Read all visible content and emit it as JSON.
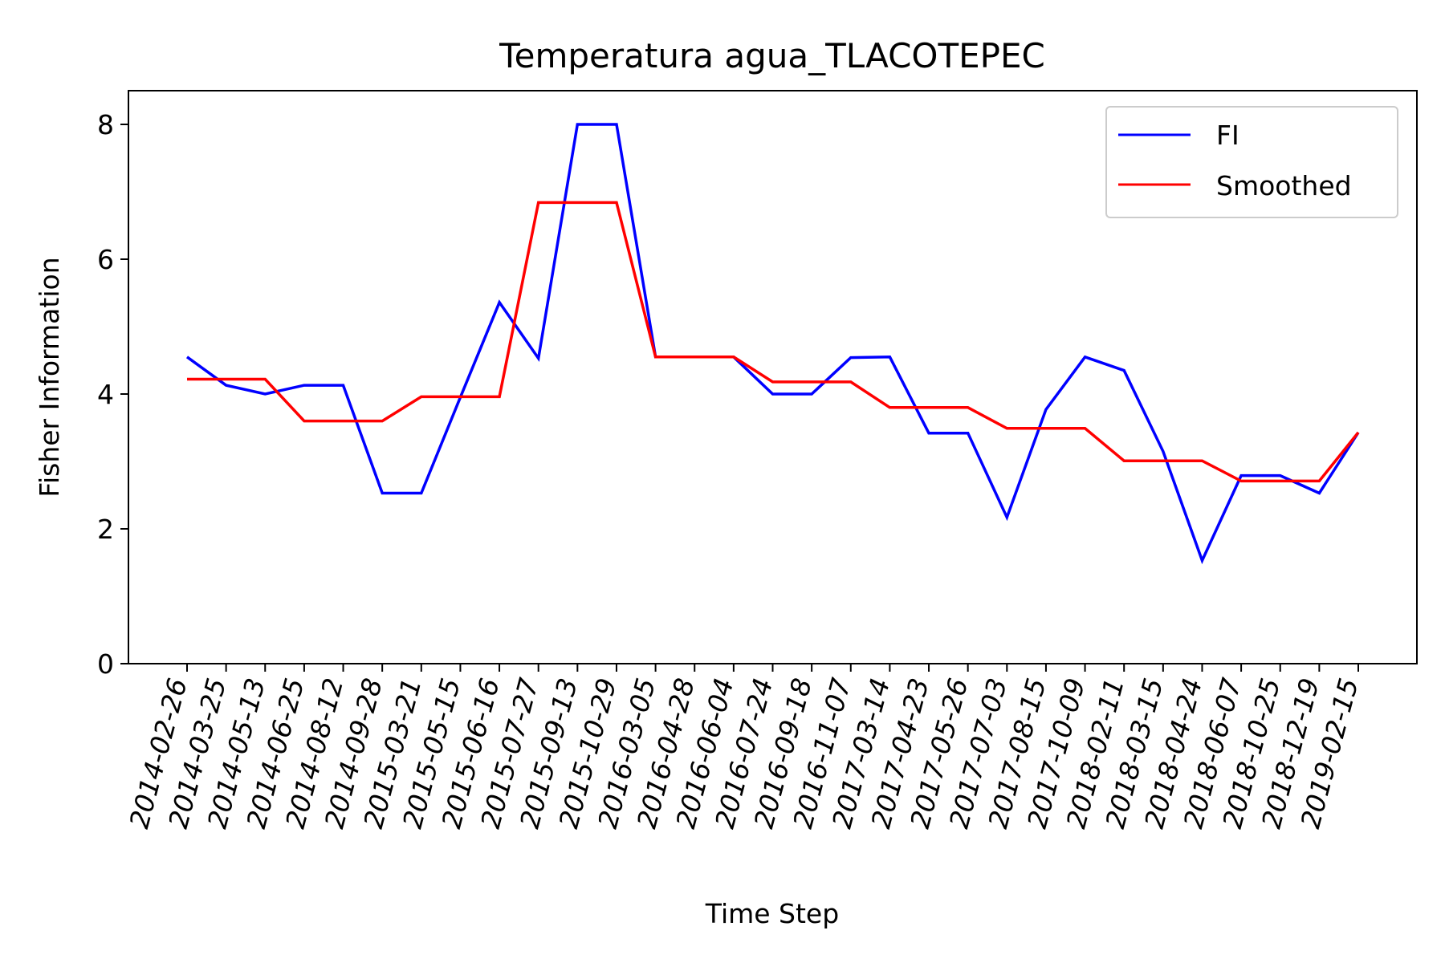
{
  "chart_data": {
    "type": "line",
    "title": "Temperatura agua_TLACOTEPEC",
    "xlabel": "Time Step",
    "ylabel": "Fisher Information",
    "categories": [
      "2014-02-26",
      "2014-03-25",
      "2014-05-13",
      "2014-06-25",
      "2014-08-12",
      "2014-09-28",
      "2015-03-21",
      "2015-05-15",
      "2015-06-16",
      "2015-07-27",
      "2015-09-13",
      "2015-10-29",
      "2016-03-05",
      "2016-04-28",
      "2016-06-04",
      "2016-07-24",
      "2016-09-18",
      "2016-11-07",
      "2017-03-14",
      "2017-04-23",
      "2017-05-26",
      "2017-07-03",
      "2017-08-15",
      "2017-10-09",
      "2018-02-11",
      "2018-03-15",
      "2018-04-24",
      "2018-06-07",
      "2018-10-25",
      "2018-12-19",
      "2019-02-15"
    ],
    "ylim": [
      0,
      8.5
    ],
    "yticks": [
      0,
      2,
      4,
      6,
      8
    ],
    "grid": false,
    "legend_position": "top-right",
    "series": [
      {
        "name": "FI",
        "color": "#0000ff",
        "values": [
          4.55,
          4.13,
          4.0,
          4.13,
          4.13,
          2.53,
          2.53,
          3.95,
          5.36,
          4.53,
          8.0,
          8.0,
          4.55,
          4.55,
          4.55,
          4.0,
          4.0,
          4.54,
          4.55,
          3.42,
          3.42,
          2.17,
          3.77,
          4.55,
          4.35,
          3.15,
          1.53,
          2.79,
          2.79,
          2.53,
          3.43
        ]
      },
      {
        "name": "Smoothed",
        "color": "#ff0000",
        "values": [
          4.22,
          4.22,
          4.22,
          3.6,
          3.6,
          3.6,
          3.96,
          3.96,
          3.96,
          6.84,
          6.84,
          6.84,
          4.55,
          4.55,
          4.55,
          4.18,
          4.18,
          4.18,
          3.8,
          3.8,
          3.8,
          3.49,
          3.49,
          3.49,
          3.01,
          3.01,
          3.01,
          2.71,
          2.71,
          2.71,
          3.43
        ]
      }
    ]
  }
}
